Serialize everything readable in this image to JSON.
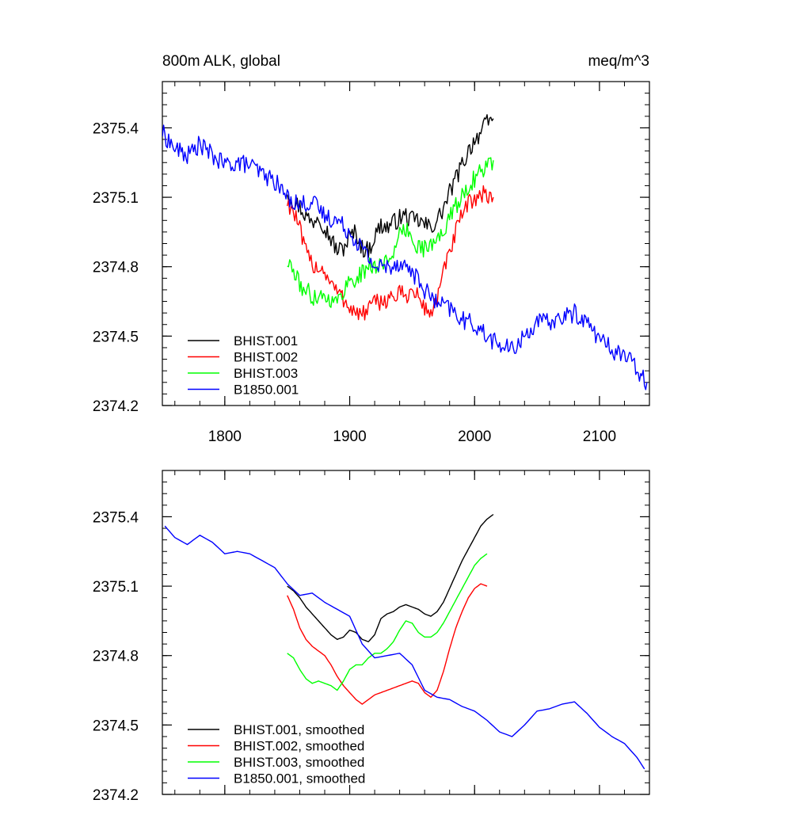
{
  "chart_data": [
    {
      "type": "line",
      "title": "800m ALK, global",
      "units": "meq/m^3",
      "xlim": [
        1750,
        2140
      ],
      "ylim": [
        2374.2,
        2375.6
      ],
      "xticks": [
        1800,
        1900,
        2000,
        2100
      ],
      "yticks": [
        2374.2,
        2374.5,
        2374.8,
        2375.1,
        2375.4
      ],
      "show_xtick_labels": true,
      "legend_position": "bottom-left",
      "series": [
        {
          "name": "BHIST.001",
          "color": "#000000",
          "noise": 0.04,
          "x": [
            1850,
            1855,
            1860,
            1865,
            1870,
            1875,
            1880,
            1885,
            1890,
            1895,
            1900,
            1905,
            1910,
            1915,
            1920,
            1925,
            1930,
            1935,
            1940,
            1945,
            1950,
            1955,
            1960,
            1965,
            1970,
            1975,
            1980,
            1985,
            1990,
            1995,
            2000,
            2005,
            2010,
            2015
          ],
          "y": [
            2375.13,
            2375.08,
            2375.06,
            2375.02,
            2374.99,
            2375.03,
            2374.97,
            2374.92,
            2374.87,
            2374.88,
            2374.93,
            2374.95,
            2374.88,
            2374.87,
            2374.93,
            2374.98,
            2374.97,
            2374.99,
            2375.01,
            2375.02,
            2375.0,
            2375.0,
            2374.98,
            2374.97,
            2375.0,
            2375.05,
            2375.12,
            2375.18,
            2375.24,
            2375.3,
            2375.35,
            2375.38,
            2375.42,
            2375.44
          ]
        },
        {
          "name": "BHIST.002",
          "color": "#ff0000",
          "noise": 0.04,
          "x": [
            1850,
            1855,
            1860,
            1865,
            1870,
            1875,
            1880,
            1885,
            1890,
            1895,
            1900,
            1905,
            1910,
            1915,
            1920,
            1925,
            1930,
            1935,
            1940,
            1945,
            1950,
            1955,
            1960,
            1965,
            1970,
            1975,
            1980,
            1985,
            1990,
            1995,
            2000,
            2005,
            2010,
            2015
          ],
          "y": [
            2375.08,
            2375.04,
            2374.96,
            2374.86,
            2374.81,
            2374.8,
            2374.78,
            2374.73,
            2374.69,
            2374.66,
            2374.63,
            2374.6,
            2374.59,
            2374.62,
            2374.64,
            2374.65,
            2374.66,
            2374.67,
            2374.68,
            2374.68,
            2374.69,
            2374.67,
            2374.62,
            2374.6,
            2374.66,
            2374.77,
            2374.86,
            2374.95,
            2375.02,
            2375.07,
            2375.1,
            2375.11,
            2375.11,
            2375.1
          ]
        },
        {
          "name": "BHIST.003",
          "color": "#00ff00",
          "noise": 0.04,
          "x": [
            1850,
            1855,
            1860,
            1865,
            1870,
            1875,
            1880,
            1885,
            1890,
            1895,
            1900,
            1905,
            1910,
            1915,
            1920,
            1925,
            1930,
            1935,
            1940,
            1945,
            1950,
            1955,
            1960,
            1965,
            1970,
            1975,
            1980,
            1985,
            1990,
            1995,
            2000,
            2005,
            2010,
            2015
          ],
          "y": [
            2374.82,
            2374.78,
            2374.72,
            2374.7,
            2374.67,
            2374.68,
            2374.67,
            2374.66,
            2374.64,
            2374.7,
            2374.74,
            2374.75,
            2374.77,
            2374.8,
            2374.81,
            2374.8,
            2374.83,
            2374.87,
            2374.93,
            2374.96,
            2374.93,
            2374.89,
            2374.88,
            2374.89,
            2374.91,
            2374.96,
            2375.01,
            2375.06,
            2375.11,
            2375.15,
            2375.18,
            2375.21,
            2375.24,
            2375.26
          ]
        },
        {
          "name": "B1850.001",
          "color": "#0000ff",
          "noise": 0.04,
          "x": [
            1750,
            1760,
            1770,
            1780,
            1790,
            1800,
            1810,
            1820,
            1830,
            1840,
            1850,
            1860,
            1870,
            1880,
            1890,
            1900,
            1910,
            1920,
            1930,
            1940,
            1950,
            1960,
            1970,
            1980,
            1990,
            2000,
            2010,
            2020,
            2030,
            2040,
            2050,
            2060,
            2070,
            2080,
            2090,
            2100,
            2110,
            2120,
            2130,
            2138
          ],
          "y": [
            2375.38,
            2375.31,
            2375.28,
            2375.33,
            2375.28,
            2375.24,
            2375.25,
            2375.24,
            2375.2,
            2375.17,
            2375.1,
            2375.07,
            2375.08,
            2375.02,
            2375.0,
            2374.95,
            2374.88,
            2374.8,
            2374.8,
            2374.82,
            2374.78,
            2374.7,
            2374.64,
            2374.62,
            2374.57,
            2374.55,
            2374.5,
            2374.46,
            2374.44,
            2374.5,
            2374.56,
            2374.56,
            2374.58,
            2374.6,
            2374.56,
            2374.49,
            2374.44,
            2374.42,
            2374.36,
            2374.3
          ]
        }
      ]
    },
    {
      "type": "line",
      "title": "",
      "units": "",
      "xlim": [
        1750,
        2140
      ],
      "ylim": [
        2374.2,
        2375.6
      ],
      "xticks": [
        1800,
        1900,
        2000,
        2100
      ],
      "yticks": [
        2374.2,
        2374.5,
        2374.8,
        2375.1,
        2375.4
      ],
      "show_xtick_labels": false,
      "legend_position": "bottom-left",
      "series": [
        {
          "name": "BHIST.001, smoothed",
          "color": "#000000",
          "noise": 0,
          "x": [
            1850,
            1855,
            1860,
            1865,
            1870,
            1875,
            1880,
            1885,
            1890,
            1895,
            1900,
            1905,
            1910,
            1915,
            1920,
            1925,
            1930,
            1935,
            1940,
            1945,
            1950,
            1955,
            1960,
            1965,
            1970,
            1975,
            1980,
            1985,
            1990,
            1995,
            2000,
            2005,
            2010,
            2015
          ],
          "y": [
            2375.1,
            2375.08,
            2375.05,
            2375.01,
            2374.98,
            2374.95,
            2374.92,
            2374.89,
            2374.87,
            2374.88,
            2374.91,
            2374.9,
            2374.87,
            2374.86,
            2374.89,
            2374.96,
            2374.98,
            2374.99,
            2375.01,
            2375.02,
            2375.01,
            2375.0,
            2374.98,
            2374.97,
            2374.99,
            2375.03,
            2375.09,
            2375.15,
            2375.21,
            2375.26,
            2375.31,
            2375.36,
            2375.39,
            2375.41
          ]
        },
        {
          "name": "BHIST.002, smoothed",
          "color": "#ff0000",
          "noise": 0,
          "x": [
            1850,
            1855,
            1860,
            1865,
            1870,
            1875,
            1880,
            1885,
            1890,
            1895,
            1900,
            1905,
            1910,
            1915,
            1920,
            1925,
            1930,
            1935,
            1940,
            1945,
            1950,
            1955,
            1960,
            1965,
            1970,
            1975,
            1980,
            1985,
            1990,
            1995,
            2000,
            2005,
            2010
          ],
          "y": [
            2375.06,
            2375.0,
            2374.92,
            2374.87,
            2374.84,
            2374.82,
            2374.8,
            2374.76,
            2374.71,
            2374.67,
            2374.64,
            2374.61,
            2374.59,
            2374.61,
            2374.63,
            2374.64,
            2374.65,
            2374.66,
            2374.67,
            2374.68,
            2374.69,
            2374.68,
            2374.64,
            2374.62,
            2374.65,
            2374.73,
            2374.83,
            2374.92,
            2374.99,
            2375.05,
            2375.09,
            2375.11,
            2375.1
          ]
        },
        {
          "name": "BHIST.003, smoothed",
          "color": "#00ff00",
          "noise": 0,
          "x": [
            1850,
            1855,
            1860,
            1865,
            1870,
            1875,
            1880,
            1885,
            1890,
            1895,
            1900,
            1905,
            1910,
            1915,
            1920,
            1925,
            1930,
            1935,
            1940,
            1945,
            1950,
            1955,
            1960,
            1965,
            1970,
            1975,
            1980,
            1985,
            1990,
            1995,
            2000,
            2005,
            2010
          ],
          "y": [
            2374.81,
            2374.79,
            2374.74,
            2374.7,
            2374.68,
            2374.69,
            2374.68,
            2374.67,
            2374.65,
            2374.69,
            2374.74,
            2374.76,
            2374.76,
            2374.79,
            2374.81,
            2374.81,
            2374.83,
            2374.86,
            2374.91,
            2374.95,
            2374.94,
            2374.9,
            2374.88,
            2374.88,
            2374.9,
            2374.94,
            2374.99,
            2375.04,
            2375.09,
            2375.14,
            2375.19,
            2375.22,
            2375.24
          ]
        },
        {
          "name": "B1850.001, smoothed",
          "color": "#0000ff",
          "noise": 0,
          "x": [
            1752,
            1760,
            1770,
            1780,
            1790,
            1800,
            1810,
            1820,
            1830,
            1840,
            1850,
            1860,
            1870,
            1880,
            1890,
            1900,
            1910,
            1920,
            1930,
            1940,
            1950,
            1960,
            1970,
            1980,
            1990,
            2000,
            2010,
            2020,
            2030,
            2040,
            2050,
            2060,
            2070,
            2080,
            2090,
            2100,
            2110,
            2120,
            2130,
            2136
          ],
          "y": [
            2375.36,
            2375.31,
            2375.28,
            2375.32,
            2375.29,
            2375.24,
            2375.25,
            2375.24,
            2375.21,
            2375.18,
            2375.11,
            2375.06,
            2375.07,
            2375.03,
            2375.0,
            2374.97,
            2374.85,
            2374.79,
            2374.8,
            2374.81,
            2374.76,
            2374.65,
            2374.62,
            2374.61,
            2374.58,
            2374.56,
            2374.52,
            2374.47,
            2374.45,
            2374.5,
            2374.56,
            2374.57,
            2374.59,
            2374.6,
            2374.55,
            2374.49,
            2374.45,
            2374.42,
            2374.36,
            2374.31
          ]
        }
      ]
    }
  ]
}
